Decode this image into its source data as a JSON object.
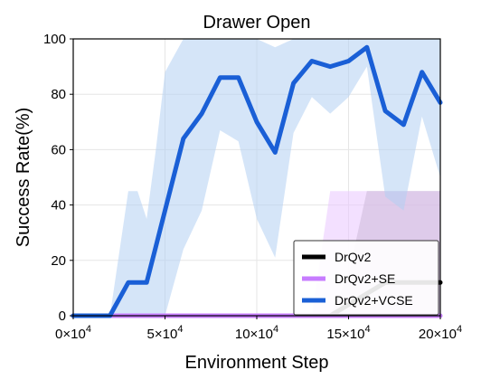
{
  "chart_data": {
    "type": "line",
    "title": "Drawer Open",
    "xlabel": "Environment Step",
    "ylabel": "Success Rate(%)",
    "xlim": [
      0,
      200000
    ],
    "ylim": [
      0,
      100
    ],
    "x_ticks": [
      0,
      50000,
      100000,
      150000,
      200000
    ],
    "x_tick_labels": [
      {
        "mantissa": "0×10",
        "exp": "4"
      },
      {
        "mantissa": "5×10",
        "exp": "4"
      },
      {
        "mantissa": "10×10",
        "exp": "4"
      },
      {
        "mantissa": "15×10",
        "exp": "4"
      },
      {
        "mantissa": "20×10",
        "exp": "4"
      }
    ],
    "y_ticks": [
      0,
      20,
      40,
      60,
      80,
      100
    ],
    "y_tick_labels": [
      "0",
      "20",
      "40",
      "60",
      "80",
      "100"
    ],
    "grid": true,
    "legend_position": "bottom-right",
    "series": [
      {
        "name": "DrQv2",
        "color": "#000000",
        "band_color": "#a9a9a9",
        "x": [
          0,
          10000,
          20000,
          30000,
          40000,
          50000,
          60000,
          70000,
          80000,
          90000,
          100000,
          110000,
          120000,
          130000,
          140000,
          150000,
          160000,
          170000,
          180000,
          190000,
          200000
        ],
        "y": [
          0,
          0,
          0,
          0,
          0,
          0,
          0,
          0,
          0,
          0,
          0,
          0,
          0,
          0,
          0,
          4,
          8,
          12,
          12,
          12,
          12
        ],
        "upper": [
          0,
          0,
          0,
          0,
          0,
          0,
          0,
          0,
          0,
          0,
          0,
          0,
          0,
          0,
          0,
          15,
          45,
          45,
          45,
          45,
          45
        ],
        "lower": [
          0,
          0,
          0,
          0,
          0,
          0,
          0,
          0,
          0,
          0,
          0,
          0,
          0,
          0,
          0,
          0,
          0,
          0,
          0,
          0,
          0
        ]
      },
      {
        "name": "DrQv2+SE",
        "color": "#c77cff",
        "band_color": "#e9c6ff",
        "x": [
          0,
          10000,
          20000,
          30000,
          40000,
          50000,
          60000,
          70000,
          80000,
          90000,
          100000,
          110000,
          120000,
          130000,
          140000,
          150000,
          160000,
          170000,
          180000,
          190000,
          200000
        ],
        "y": [
          0,
          0,
          0,
          0,
          0,
          0,
          0,
          0,
          0,
          0,
          0,
          0,
          0,
          0,
          0,
          0,
          0,
          0,
          0,
          0,
          0
        ],
        "upper": [
          0,
          0,
          0,
          0,
          0,
          0,
          0,
          0,
          0,
          0,
          0,
          0,
          0,
          0,
          45,
          45,
          45,
          45,
          45,
          45,
          45
        ],
        "lower": [
          0,
          0,
          0,
          0,
          0,
          0,
          0,
          0,
          0,
          0,
          0,
          0,
          0,
          0,
          0,
          0,
          0,
          0,
          0,
          0,
          0
        ]
      },
      {
        "name": "DrQv2+VCSE",
        "color": "#1a5fd6",
        "band_color": "#b3cff2",
        "x": [
          0,
          10000,
          20000,
          30000,
          35000,
          40000,
          45000,
          50000,
          60000,
          70000,
          80000,
          90000,
          100000,
          110000,
          120000,
          130000,
          140000,
          150000,
          160000,
          170000,
          180000,
          190000,
          200000
        ],
        "y": [
          0,
          0,
          0,
          12,
          12,
          12,
          25,
          38,
          64,
          73,
          86,
          86,
          70,
          59,
          84,
          92,
          90,
          92,
          97,
          74,
          69,
          88,
          77
        ],
        "upper": [
          0,
          0,
          0,
          45,
          45,
          35,
          60,
          88,
          100,
          100,
          100,
          100,
          100,
          97,
          100,
          100,
          100,
          100,
          100,
          100,
          100,
          100,
          100
        ],
        "lower": [
          0,
          0,
          0,
          0,
          0,
          0,
          0,
          0,
          24,
          38,
          67,
          63,
          35,
          21,
          66,
          79,
          73,
          79,
          90,
          43,
          38,
          72,
          50
        ]
      }
    ]
  }
}
